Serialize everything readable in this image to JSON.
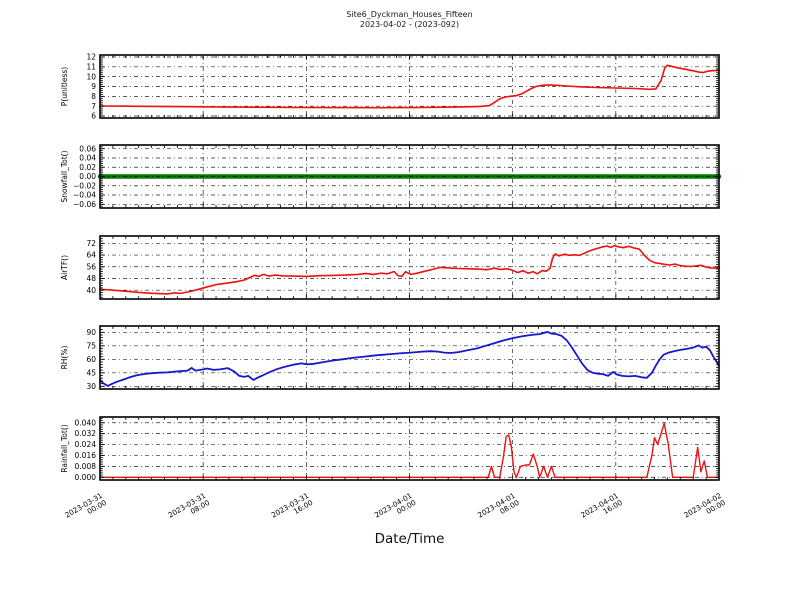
{
  "figure": {
    "title": "Site6_Dyckman_Houses_Fifteen",
    "subtitle": "2023-04-02 - (2023-092)",
    "xlabel": "Date/Time"
  },
  "chart_data": {
    "type": "line",
    "title": "Site6_Dyckman_Houses_Fifteen",
    "subtitle": "2023-04-02 - (2023-092)",
    "xlabel": "Date/Time",
    "x_unit": "hours since 2023-03-31 00:00",
    "x_range": [
      0,
      48
    ],
    "grid": "black dash-dot gridlines at major ticks, both axes; inward minor ticks on all four spines",
    "legend_position": "none",
    "x_ticks": [
      {
        "hour": 0,
        "date": "2023-03-31",
        "time": "00:00"
      },
      {
        "hour": 8,
        "date": "2023-03-31",
        "time": "08:00"
      },
      {
        "hour": 16,
        "date": "2023-03-31",
        "time": "16:00"
      },
      {
        "hour": 24,
        "date": "2023-04-01",
        "time": "00:00"
      },
      {
        "hour": 32,
        "date": "2023-04-01",
        "time": "08:00"
      },
      {
        "hour": 40,
        "date": "2023-04-01",
        "time": "16:00"
      },
      {
        "hour": 48,
        "date": "2023-04-02",
        "time": "00:00"
      }
    ],
    "panels": [
      {
        "id": "p-unitless",
        "ylabel": "P(unitless)",
        "color": "#ee1111",
        "line_width": 1.6,
        "ylim": [
          5.8,
          12.2
        ],
        "yticks": [
          12,
          11,
          10,
          9,
          8,
          7,
          6
        ],
        "ytick_labels": [
          "12",
          "11",
          "10",
          "9",
          "8",
          "7",
          "6"
        ],
        "grid_on_top": false,
        "points": [
          [
            0,
            7.02
          ],
          [
            3,
            6.99
          ],
          [
            6,
            6.96
          ],
          [
            9,
            6.93
          ],
          [
            12,
            6.9
          ],
          [
            15,
            6.88
          ],
          [
            18,
            6.86
          ],
          [
            21,
            6.85
          ],
          [
            24,
            6.86
          ],
          [
            26,
            6.89
          ],
          [
            28,
            6.93
          ],
          [
            29.5,
            6.98
          ],
          [
            30.2,
            7.06
          ],
          [
            30.6,
            7.4
          ],
          [
            31,
            7.75
          ],
          [
            31.4,
            7.92
          ],
          [
            31.8,
            8.0
          ],
          [
            32.3,
            8.08
          ],
          [
            32.8,
            8.32
          ],
          [
            33.3,
            8.7
          ],
          [
            33.8,
            9.0
          ],
          [
            34.3,
            9.12
          ],
          [
            34.8,
            9.16
          ],
          [
            35.4,
            9.12
          ],
          [
            36.2,
            9.05
          ],
          [
            37.2,
            8.97
          ],
          [
            38.5,
            8.9
          ],
          [
            40,
            8.85
          ],
          [
            41.5,
            8.8
          ],
          [
            42.6,
            8.72
          ],
          [
            43.1,
            8.76
          ],
          [
            43.5,
            9.6
          ],
          [
            43.8,
            10.9
          ],
          [
            44,
            11.15
          ],
          [
            44.3,
            11.05
          ],
          [
            44.8,
            10.9
          ],
          [
            45.4,
            10.75
          ],
          [
            46,
            10.6
          ],
          [
            46.5,
            10.45
          ],
          [
            46.8,
            10.42
          ],
          [
            47.1,
            10.55
          ],
          [
            47.6,
            10.62
          ],
          [
            48,
            10.65
          ]
        ]
      },
      {
        "id": "snowfall",
        "ylabel": "Snowfall_Tot()",
        "color": "#007a00",
        "line_width": 4.5,
        "ylim": [
          -0.068,
          0.068
        ],
        "yticks": [
          0.06,
          0.04,
          0.02,
          0.0,
          -0.02,
          -0.04,
          -0.06
        ],
        "ytick_labels": [
          "0.06",
          "0.04",
          "0.02",
          "0.00",
          "−0.02",
          "−0.04",
          "−0.06"
        ],
        "grid_on_top": true,
        "points": [
          [
            0,
            0
          ],
          [
            48,
            0
          ]
        ]
      },
      {
        "id": "airtf",
        "ylabel": "AirTF()",
        "color": "#ee1111",
        "line_width": 1.6,
        "ylim": [
          34,
          77
        ],
        "yticks": [
          72,
          64,
          56,
          48,
          40
        ],
        "ytick_labels": [
          "72",
          "64",
          "56",
          "48",
          "40"
        ],
        "grid_on_top": false,
        "points": [
          [
            0,
            40.6
          ],
          [
            0.8,
            40.2
          ],
          [
            1.6,
            39.6
          ],
          [
            2.4,
            39.0
          ],
          [
            3.2,
            38.4
          ],
          [
            4.0,
            37.9
          ],
          [
            4.8,
            37.6
          ],
          [
            5.2,
            37.5
          ],
          [
            5.8,
            38.2
          ],
          [
            6.2,
            37.8
          ],
          [
            6.8,
            38.8
          ],
          [
            7.4,
            40.0
          ],
          [
            8.2,
            42.0
          ],
          [
            9.0,
            43.8
          ],
          [
            9.8,
            44.8
          ],
          [
            10.6,
            45.8
          ],
          [
            11.2,
            47.0
          ],
          [
            11.7,
            49.0
          ],
          [
            12.0,
            50.2
          ],
          [
            12.3,
            49.4
          ],
          [
            12.7,
            50.8
          ],
          [
            13.1,
            49.6
          ],
          [
            13.6,
            50.3
          ],
          [
            14.2,
            49.8
          ],
          [
            15,
            49.6
          ],
          [
            16,
            49.4
          ],
          [
            17,
            49.9
          ],
          [
            18,
            50.1
          ],
          [
            19,
            50.3
          ],
          [
            20,
            50.8
          ],
          [
            20.6,
            51.5
          ],
          [
            21.2,
            50.8
          ],
          [
            21.8,
            51.6
          ],
          [
            22.3,
            51.2
          ],
          [
            22.8,
            52.8
          ],
          [
            23.1,
            50.0
          ],
          [
            23.4,
            49.4
          ],
          [
            23.7,
            52.6
          ],
          [
            24.1,
            50.8
          ],
          [
            24.6,
            51.6
          ],
          [
            25.2,
            53.0
          ],
          [
            25.8,
            54.2
          ],
          [
            26.4,
            55.6
          ],
          [
            27.0,
            55.2
          ],
          [
            27.8,
            54.8
          ],
          [
            28.6,
            54.6
          ],
          [
            29.4,
            54.4
          ],
          [
            30.0,
            54.0
          ],
          [
            30.6,
            55.0
          ],
          [
            31.0,
            54.2
          ],
          [
            31.6,
            54.6
          ],
          [
            32.0,
            53.6
          ],
          [
            32.4,
            52.0
          ],
          [
            32.8,
            53.4
          ],
          [
            33.2,
            51.6
          ],
          [
            33.6,
            52.6
          ],
          [
            33.9,
            51.2
          ],
          [
            34.3,
            53.4
          ],
          [
            34.6,
            53.0
          ],
          [
            34.9,
            55.0
          ],
          [
            35.1,
            62.0
          ],
          [
            35.3,
            64.8
          ],
          [
            35.6,
            63.4
          ],
          [
            36.0,
            64.6
          ],
          [
            36.4,
            63.8
          ],
          [
            36.8,
            64.2
          ],
          [
            37.2,
            63.8
          ],
          [
            37.6,
            65.4
          ],
          [
            38.0,
            67.0
          ],
          [
            38.5,
            68.4
          ],
          [
            39.0,
            69.6
          ],
          [
            39.3,
            70.2
          ],
          [
            39.6,
            69.2
          ],
          [
            39.9,
            70.4
          ],
          [
            40.2,
            69.6
          ],
          [
            40.6,
            69.0
          ],
          [
            41.0,
            70.0
          ],
          [
            41.4,
            68.8
          ],
          [
            41.8,
            68.2
          ],
          [
            42.2,
            64.0
          ],
          [
            42.6,
            60.5
          ],
          [
            43.0,
            58.8
          ],
          [
            43.4,
            58.2
          ],
          [
            43.8,
            57.6
          ],
          [
            44.2,
            57.2
          ],
          [
            44.6,
            57.8
          ],
          [
            45.0,
            56.8
          ],
          [
            45.4,
            56.4
          ],
          [
            45.8,
            56.2
          ],
          [
            46.2,
            56.6
          ],
          [
            46.6,
            57.0
          ],
          [
            47.0,
            55.8
          ],
          [
            47.4,
            55.2
          ],
          [
            47.7,
            55.0
          ],
          [
            48,
            55.4
          ]
        ]
      },
      {
        "id": "rh",
        "ylabel": "RH(%)",
        "color": "#1717cf",
        "line_width": 1.8,
        "ylim": [
          27,
          97
        ],
        "yticks": [
          90,
          75,
          60,
          45,
          30
        ],
        "ytick_labels": [
          "90",
          "75",
          "60",
          "45",
          "30"
        ],
        "grid_on_top": false,
        "points": [
          [
            0,
            37
          ],
          [
            0.3,
            33
          ],
          [
            0.6,
            30.5
          ],
          [
            0.9,
            32.5
          ],
          [
            1.3,
            35
          ],
          [
            1.8,
            37.5
          ],
          [
            2.3,
            40
          ],
          [
            2.9,
            42.5
          ],
          [
            3.6,
            44
          ],
          [
            4.4,
            45
          ],
          [
            5.2,
            45.5
          ],
          [
            6.0,
            46.5
          ],
          [
            6.8,
            47.5
          ],
          [
            7.1,
            50.5
          ],
          [
            7.4,
            47.5
          ],
          [
            7.9,
            48.5
          ],
          [
            8.3,
            49.8
          ],
          [
            8.8,
            48.2
          ],
          [
            9.3,
            48.8
          ],
          [
            9.9,
            50.2
          ],
          [
            10.4,
            46.5
          ],
          [
            10.8,
            41.5
          ],
          [
            11.2,
            40.5
          ],
          [
            11.5,
            41.5
          ],
          [
            11.9,
            37
          ],
          [
            12.2,
            39.5
          ],
          [
            12.6,
            42
          ],
          [
            13.1,
            45.5
          ],
          [
            13.7,
            49
          ],
          [
            14.3,
            51.5
          ],
          [
            15.0,
            54
          ],
          [
            15.6,
            55.5
          ],
          [
            16.1,
            54.5
          ],
          [
            16.6,
            55
          ],
          [
            17.2,
            56.5
          ],
          [
            18.0,
            58.5
          ],
          [
            18.8,
            60
          ],
          [
            19.6,
            61.5
          ],
          [
            20.5,
            63
          ],
          [
            21.4,
            64.5
          ],
          [
            22.3,
            65.5
          ],
          [
            23.2,
            66.5
          ],
          [
            24.1,
            67.5
          ],
          [
            25.0,
            68.5
          ],
          [
            25.7,
            69
          ],
          [
            26.2,
            68.5
          ],
          [
            26.7,
            67.5
          ],
          [
            27.2,
            67
          ],
          [
            27.8,
            68
          ],
          [
            28.5,
            70
          ],
          [
            29.2,
            72
          ],
          [
            29.9,
            75
          ],
          [
            30.6,
            78
          ],
          [
            31.3,
            81
          ],
          [
            32.0,
            83.5
          ],
          [
            32.7,
            85.5
          ],
          [
            33.4,
            87
          ],
          [
            34.1,
            88
          ],
          [
            34.7,
            90.5
          ],
          [
            35.0,
            88.5
          ],
          [
            35.4,
            88
          ],
          [
            35.8,
            86
          ],
          [
            36.2,
            81
          ],
          [
            36.6,
            73
          ],
          [
            37.0,
            64
          ],
          [
            37.4,
            55
          ],
          [
            37.8,
            48
          ],
          [
            38.2,
            45
          ],
          [
            38.6,
            44
          ],
          [
            39.0,
            43.5
          ],
          [
            39.4,
            41.5
          ],
          [
            39.8,
            46
          ],
          [
            40.1,
            43
          ],
          [
            40.5,
            41.5
          ],
          [
            41.0,
            41
          ],
          [
            41.5,
            41.5
          ],
          [
            42.0,
            40
          ],
          [
            42.4,
            39.5
          ],
          [
            42.8,
            45
          ],
          [
            43.1,
            53
          ],
          [
            43.4,
            60
          ],
          [
            43.7,
            65
          ],
          [
            44.1,
            67.5
          ],
          [
            44.5,
            69
          ],
          [
            45.0,
            70.5
          ],
          [
            45.5,
            71.5
          ],
          [
            46.0,
            73
          ],
          [
            46.4,
            75.5
          ],
          [
            46.7,
            73
          ],
          [
            47.0,
            74
          ],
          [
            47.3,
            70
          ],
          [
            47.6,
            62
          ],
          [
            48,
            53
          ]
        ]
      },
      {
        "id": "rainfall",
        "ylabel": "Rainfall_Tot()",
        "color": "#ee1111",
        "line_width": 1.4,
        "ylim": [
          -0.002,
          0.0442
        ],
        "yticks": [
          0.04,
          0.032,
          0.024,
          0.016,
          0.008,
          0.0
        ],
        "ytick_labels": [
          "0.040",
          "0.032",
          "0.024",
          "0.016",
          "0.008",
          "0.000"
        ],
        "grid_on_top": false,
        "points": [
          [
            0,
            0
          ],
          [
            30.1,
            0
          ],
          [
            30.35,
            0.008
          ],
          [
            30.6,
            0
          ],
          [
            31,
            0
          ],
          [
            31.3,
            0.016
          ],
          [
            31.5,
            0.03
          ],
          [
            31.7,
            0.031
          ],
          [
            31.9,
            0.022
          ],
          [
            32.1,
            0.004
          ],
          [
            32.3,
            0
          ],
          [
            32.6,
            0.008
          ],
          [
            33,
            0.009
          ],
          [
            33.3,
            0.009
          ],
          [
            33.6,
            0.017
          ],
          [
            33.9,
            0.008
          ],
          [
            34.1,
            0
          ],
          [
            34.4,
            0.008
          ],
          [
            34.7,
            0
          ],
          [
            35,
            0.008
          ],
          [
            35.3,
            0
          ],
          [
            42.4,
            0
          ],
          [
            42.8,
            0.016
          ],
          [
            43,
            0.029
          ],
          [
            43.25,
            0.024
          ],
          [
            43.75,
            0.0395
          ],
          [
            44.05,
            0.025
          ],
          [
            44.4,
            0
          ],
          [
            46,
            0
          ],
          [
            46.35,
            0.022
          ],
          [
            46.6,
            0.004
          ],
          [
            46.85,
            0.012
          ],
          [
            47.1,
            0
          ],
          [
            48,
            0
          ]
        ]
      }
    ]
  }
}
